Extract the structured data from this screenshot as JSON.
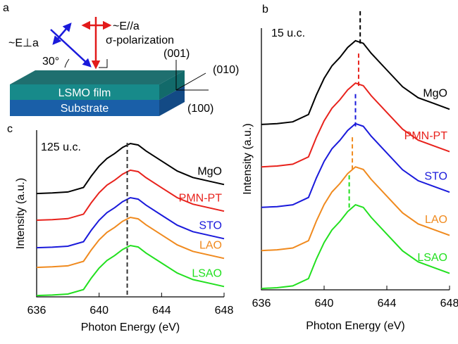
{
  "diagram": {
    "panel": "a",
    "e_perp": "~E⊥a",
    "angle": "30°",
    "e_par": "~E//a",
    "polarization": "σ-polarization",
    "axis_001": "(001)",
    "axis_010": "(010)",
    "axis_100": "(100)",
    "film": "LSMO film",
    "substrate": "Substrate"
  },
  "chart_data": [
    {
      "type": "line",
      "panel": "b",
      "annotation": "15 u.c.",
      "xlabel": "Photon Energy (eV)",
      "ylabel": "Intensity (a.u.)",
      "xlim": [
        636,
        648
      ],
      "xticks": [
        636,
        640,
        644,
        648
      ],
      "ylim": [
        0,
        10
      ],
      "x": [
        636,
        637,
        638,
        639,
        639.5,
        640,
        640.5,
        641,
        641.5,
        642,
        642.5,
        643,
        644,
        645,
        646,
        647,
        648
      ],
      "series": [
        {
          "name": "MgO",
          "color": "#000000",
          "peak": 642.3,
          "values": [
            6.32,
            6.35,
            6.42,
            6.7,
            7.44,
            8.08,
            8.56,
            8.88,
            9.26,
            9.52,
            9.42,
            9.04,
            8.4,
            7.76,
            7.34,
            7.12,
            6.9
          ]
        },
        {
          "name": "PMN-PT",
          "color": "#e8221c",
          "peak": 642.2,
          "values": [
            4.7,
            4.73,
            4.8,
            5.08,
            5.82,
            6.46,
            6.94,
            7.26,
            7.64,
            7.9,
            7.8,
            7.42,
            6.78,
            6.14,
            5.72,
            5.5,
            5.28
          ]
        },
        {
          "name": "STO",
          "color": "#1a1adb",
          "peak": 642.0,
          "values": [
            3.15,
            3.18,
            3.25,
            3.53,
            4.27,
            4.91,
            5.39,
            5.71,
            6.09,
            6.35,
            6.25,
            5.87,
            5.23,
            4.59,
            4.17,
            3.95,
            3.73
          ]
        },
        {
          "name": "LAO",
          "color": "#f08a1e",
          "peak": 641.8,
          "values": [
            1.5,
            1.53,
            1.6,
            1.88,
            2.62,
            3.26,
            3.74,
            4.06,
            4.44,
            4.7,
            4.6,
            4.22,
            3.58,
            2.94,
            2.52,
            2.3,
            2.08
          ]
        },
        {
          "name": "LSAO",
          "color": "#22e01f",
          "peak": 641.6,
          "values": [
            0.05,
            0.08,
            0.15,
            0.43,
            1.17,
            1.81,
            2.29,
            2.61,
            2.99,
            3.25,
            3.15,
            2.77,
            2.13,
            1.49,
            1.07,
            0.85,
            0.63
          ]
        }
      ]
    },
    {
      "type": "line",
      "panel": "c",
      "annotation": "125 u.c.",
      "xlabel": "Photon Energy (eV)",
      "ylabel": "Intensity (a.u.)",
      "xlim": [
        636,
        648
      ],
      "xticks": [
        636,
        640,
        644,
        648
      ],
      "ylim": [
        0,
        10
      ],
      "reference_line": 641.8,
      "x": [
        636,
        637,
        638,
        639,
        639.5,
        640,
        640.5,
        641,
        641.5,
        642,
        642.5,
        643,
        644,
        645,
        646,
        647,
        648
      ],
      "series": [
        {
          "name": "MgO",
          "color": "#000000",
          "values": [
            6.2,
            6.23,
            6.29,
            6.56,
            7.25,
            7.85,
            8.3,
            8.6,
            8.96,
            9.2,
            9.11,
            8.75,
            8.15,
            7.55,
            7.16,
            6.95,
            6.74
          ]
        },
        {
          "name": "PMN-PT",
          "color": "#e8221c",
          "values": [
            4.6,
            4.63,
            4.69,
            4.96,
            5.65,
            6.25,
            6.7,
            7.0,
            7.36,
            7.6,
            7.51,
            7.15,
            6.55,
            5.95,
            5.56,
            5.35,
            5.14
          ]
        },
        {
          "name": "STO",
          "color": "#1a1adb",
          "values": [
            2.95,
            2.98,
            3.04,
            3.31,
            4.0,
            4.6,
            5.05,
            5.35,
            5.71,
            5.95,
            5.86,
            5.5,
            4.9,
            4.3,
            3.91,
            3.7,
            3.49
          ]
        },
        {
          "name": "LAO",
          "color": "#f08a1e",
          "values": [
            1.77,
            1.8,
            1.86,
            2.13,
            2.82,
            3.42,
            3.87,
            4.17,
            4.53,
            4.77,
            4.68,
            4.32,
            3.72,
            3.12,
            2.73,
            2.52,
            2.31
          ]
        },
        {
          "name": "LSAO",
          "color": "#22e01f",
          "values": [
            0.08,
            0.11,
            0.17,
            0.44,
            1.13,
            1.73,
            2.18,
            2.48,
            2.84,
            3.08,
            2.99,
            2.63,
            2.03,
            1.43,
            1.04,
            0.83,
            0.62
          ]
        }
      ]
    }
  ]
}
